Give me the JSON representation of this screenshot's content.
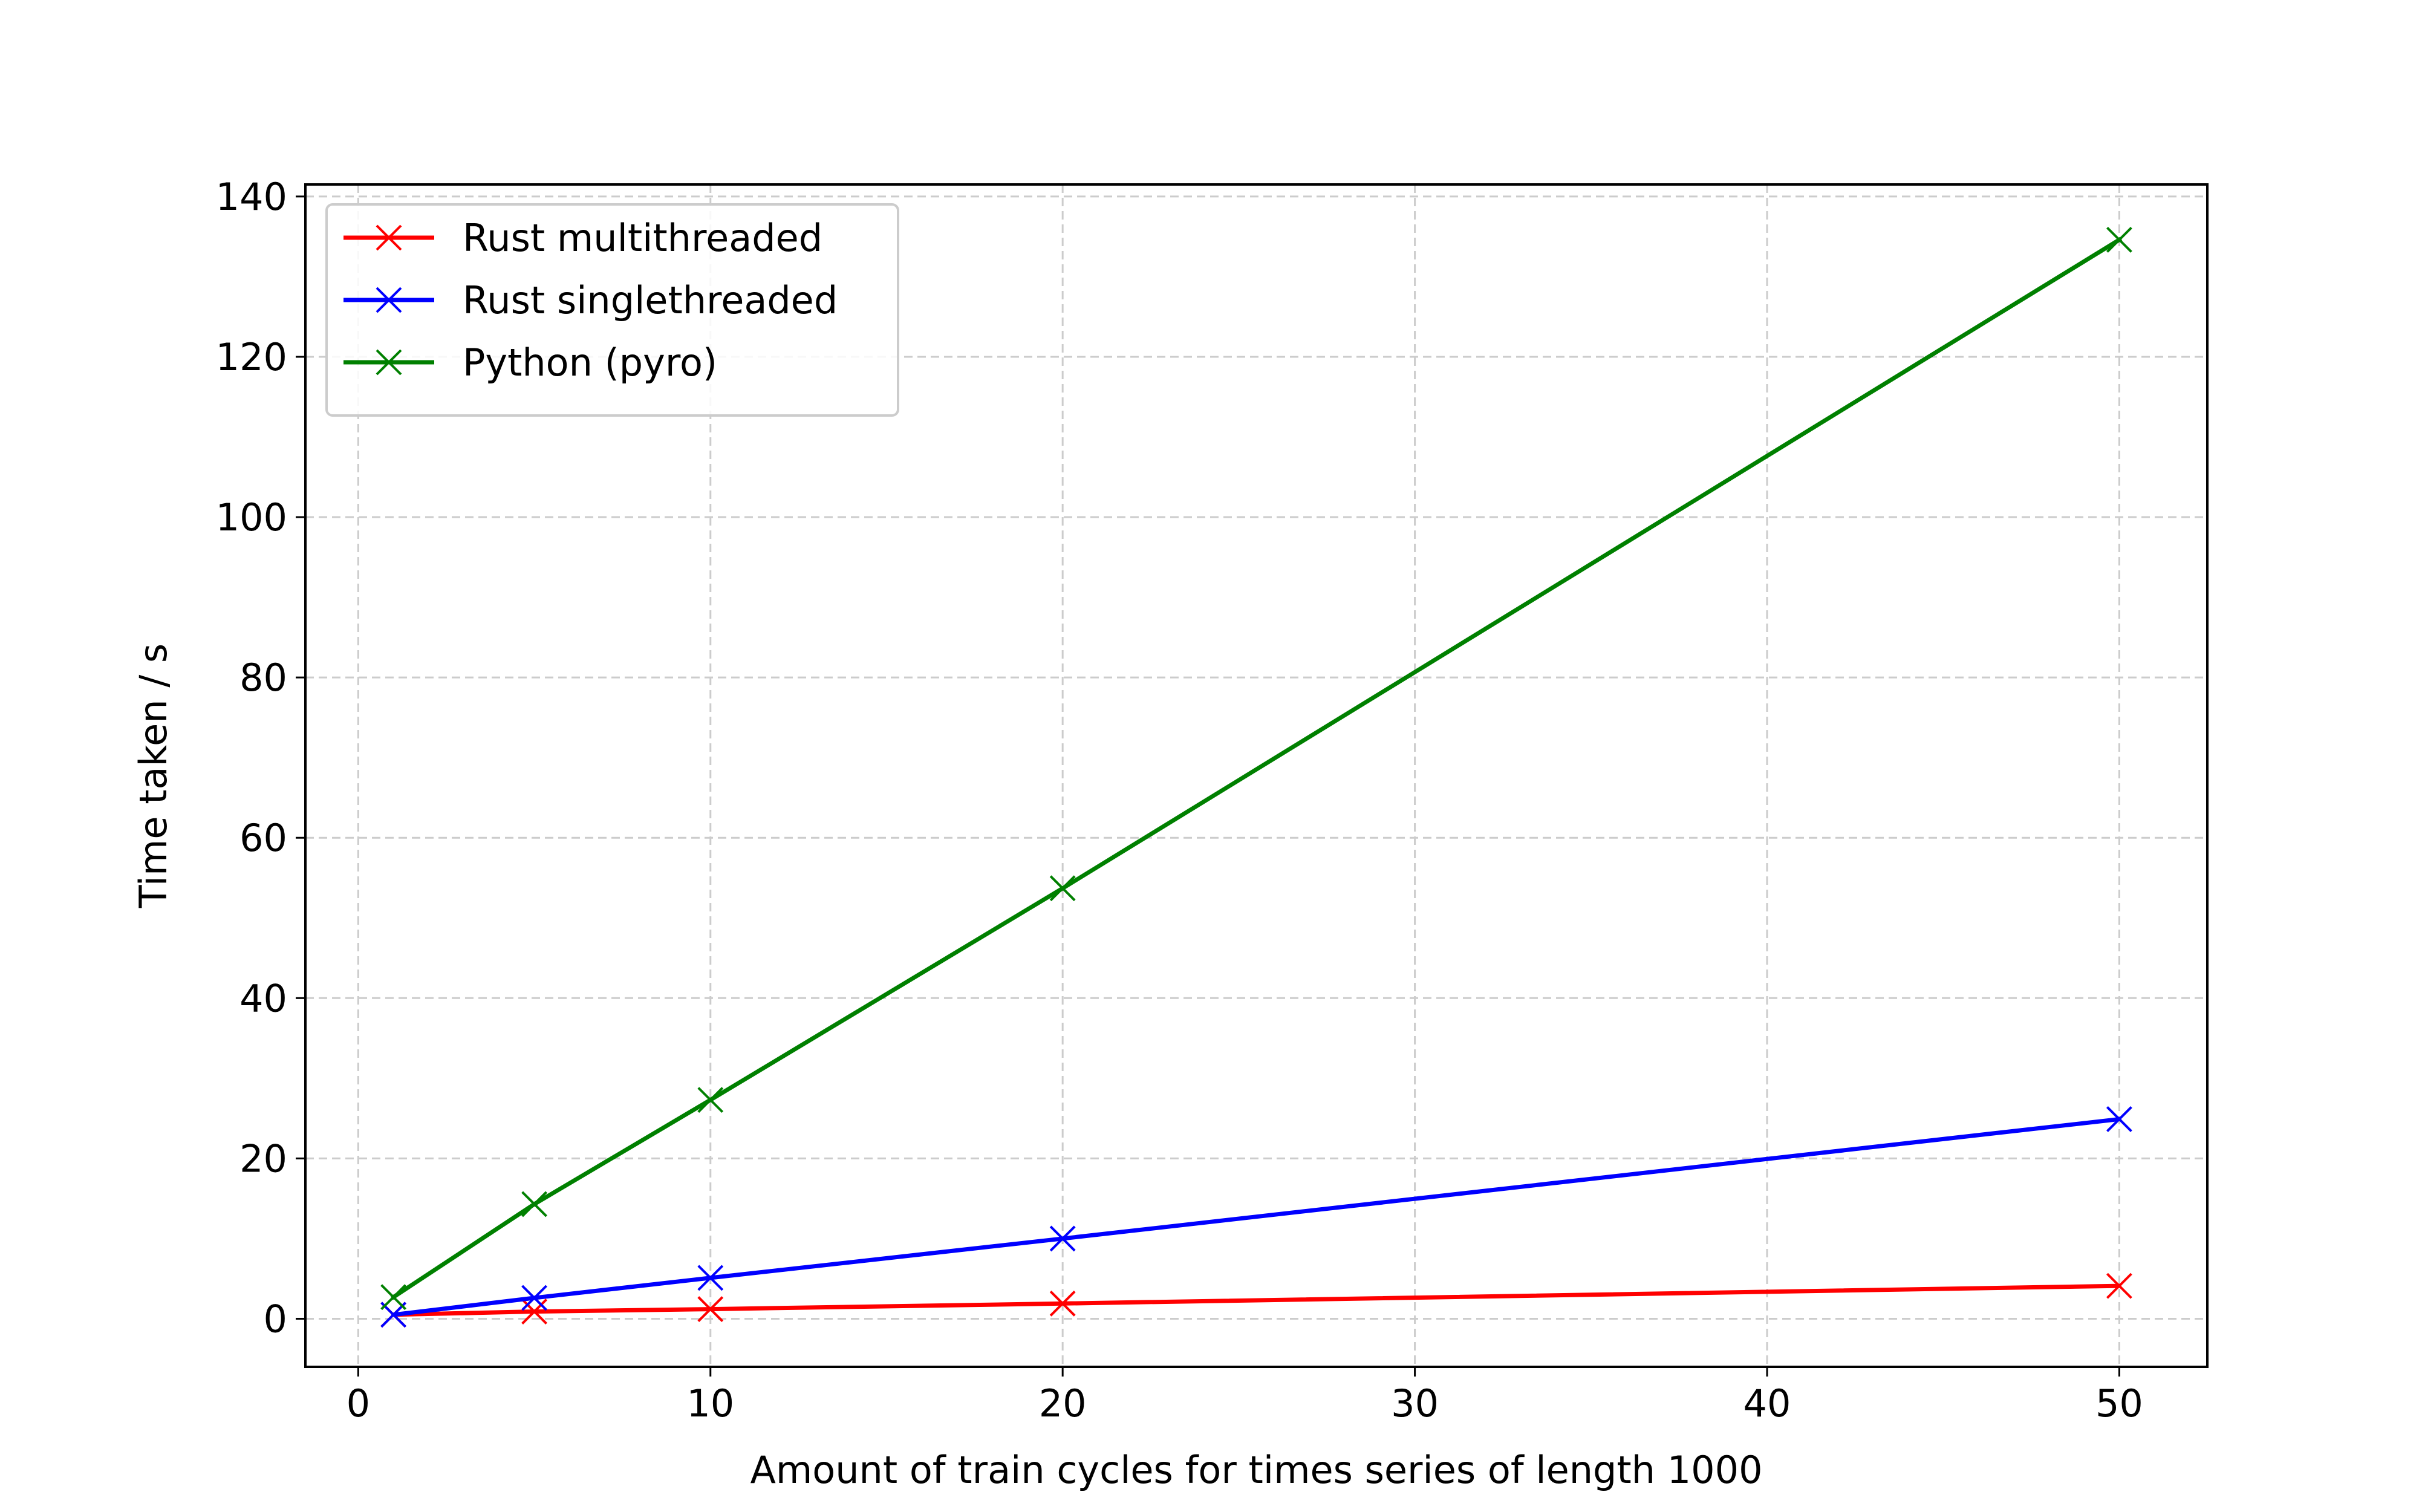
{
  "chart_data": {
    "type": "line",
    "title": "",
    "xlabel": "Amount of train cycles for times series of length 1000",
    "ylabel": "Time taken / s",
    "xlim": [
      -1.5,
      52.5
    ],
    "ylim": [
      -6.0,
      141.5
    ],
    "x_ticks": [
      0,
      10,
      20,
      30,
      40,
      50
    ],
    "y_ticks": [
      0,
      20,
      40,
      60,
      80,
      100,
      120,
      140
    ],
    "grid": true,
    "grid_style": "dashed",
    "legend_position": "upper-left",
    "marker": "x",
    "x": [
      1,
      5,
      10,
      20,
      50
    ],
    "series": [
      {
        "name": "Rust multithreaded",
        "color": "#ff0000",
        "values": [
          0.5,
          0.9,
          1.2,
          1.9,
          4.1
        ]
      },
      {
        "name": "Rust singlethreaded",
        "color": "#0000ff",
        "values": [
          0.5,
          2.6,
          5.1,
          10.0,
          24.9
        ]
      },
      {
        "name": "Python (pyro)",
        "color": "#008000",
        "values": [
          2.7,
          14.3,
          27.3,
          53.7,
          134.6
        ]
      }
    ]
  }
}
